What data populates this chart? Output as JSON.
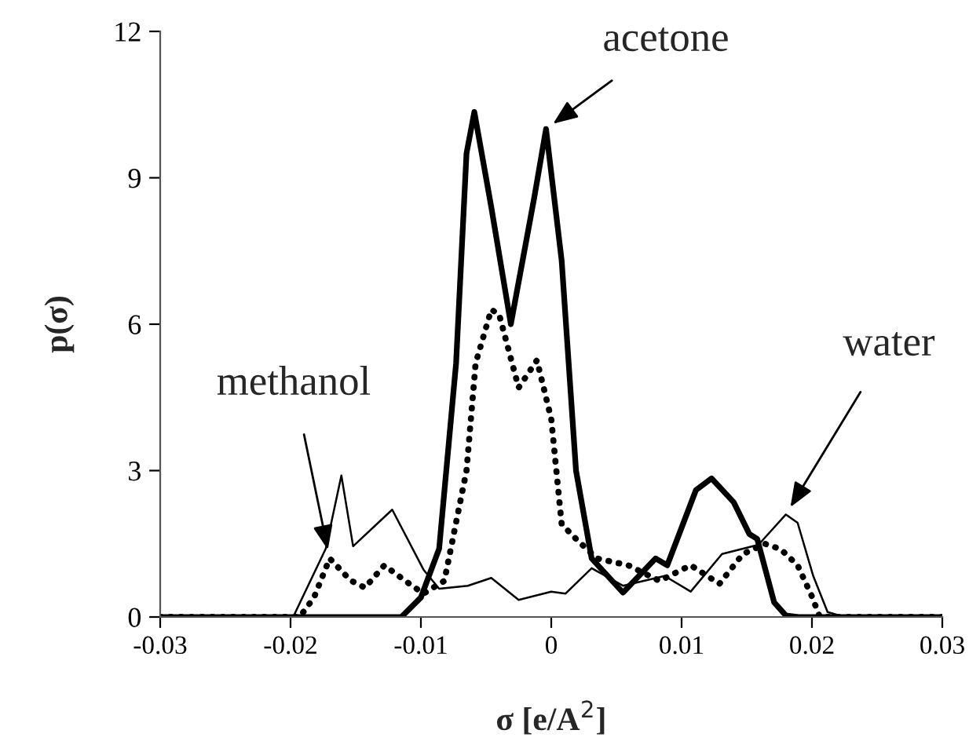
{
  "chart_data": {
    "type": "line",
    "xlabel": "σ [e/A$^{2}$]",
    "ylabel": "p(σ)",
    "xlim": [
      -0.03,
      0.03
    ],
    "xticks": [
      -0.03,
      -0.02,
      -0.01,
      0,
      0.01,
      0.02,
      0.03
    ],
    "ylim": [
      0,
      12
    ],
    "yticks": [
      0,
      3,
      6,
      9,
      12
    ],
    "grid": false,
    "marker": "none",
    "series": [
      {
        "color": "#000000",
        "line_style": "solid",
        "x": [
          -0.03,
          -0.0115,
          -0.01,
          -0.0086,
          -0.0073,
          -0.0065,
          -0.0059,
          -0.0046,
          -0.0031,
          -0.0013,
          -0.0004,
          0.0008,
          0.0019,
          0.0031,
          0.0055,
          0.008,
          0.0089,
          0.0111,
          0.0123,
          0.014,
          0.0152,
          0.0158,
          0.0171,
          0.018,
          0.019,
          0.03
        ],
        "values": [
          0,
          0,
          0.4,
          1.4,
          5.2,
          9.5,
          10.35,
          8.4,
          6.0,
          8.6,
          10.0,
          7.3,
          3.0,
          1.2,
          0.5,
          1.2,
          1.06,
          2.6,
          2.84,
          2.35,
          1.7,
          1.6,
          0.3,
          0.03,
          0,
          0
        ]
      },
      {
        "color": "#000000",
        "line_style": "dotted",
        "x": [
          -0.03,
          -0.0193,
          -0.0182,
          -0.017,
          -0.0154,
          -0.0143,
          -0.0128,
          -0.0112,
          -0.0098,
          -0.0082,
          -0.0065,
          -0.0058,
          -0.0046,
          -0.004,
          -0.0025,
          -0.0011,
          0.0,
          0.0008,
          0.0019,
          0.0035,
          0.0059,
          0.0083,
          0.0107,
          0.0129,
          0.0147,
          0.0164,
          0.0176,
          0.0189,
          0.02,
          0.0206,
          0.03
        ],
        "values": [
          0,
          0,
          0.4,
          1.2,
          0.75,
          0.6,
          1.06,
          0.74,
          0.48,
          0.74,
          3.0,
          5.2,
          6.3,
          6.2,
          4.7,
          5.26,
          4.06,
          1.9,
          1.6,
          1.2,
          1.06,
          0.74,
          1.06,
          0.68,
          1.29,
          1.5,
          1.39,
          1.06,
          0.42,
          0,
          0
        ]
      },
      {
        "color": "#000000",
        "line_style": "solid",
        "x": [
          -0.03,
          -0.0198,
          -0.0173,
          -0.0161,
          -0.0152,
          -0.0122,
          -0.0098,
          -0.0086,
          -0.0064,
          -0.0046,
          -0.0025,
          0.0,
          0.0011,
          0.0031,
          0.0055,
          0.0087,
          0.0107,
          0.0131,
          0.0159,
          0.018,
          0.0189,
          0.0201,
          0.0212,
          0.0225,
          0.03
        ],
        "values": [
          0,
          0,
          1.4,
          2.9,
          1.45,
          2.2,
          0.97,
          0.58,
          0.64,
          0.8,
          0.35,
          0.52,
          0.48,
          1.0,
          0.64,
          0.84,
          0.52,
          1.29,
          1.48,
          2.1,
          1.93,
          0.84,
          0.1,
          0,
          0
        ]
      }
    ],
    "annotations": [
      {
        "text": "acetone",
        "x": -0.0004,
        "y": 10.0
      },
      {
        "text": "water",
        "x": 0.018,
        "y": 2.1
      },
      {
        "text": "methanol",
        "x": -0.017,
        "y": 1.2
      }
    ]
  }
}
